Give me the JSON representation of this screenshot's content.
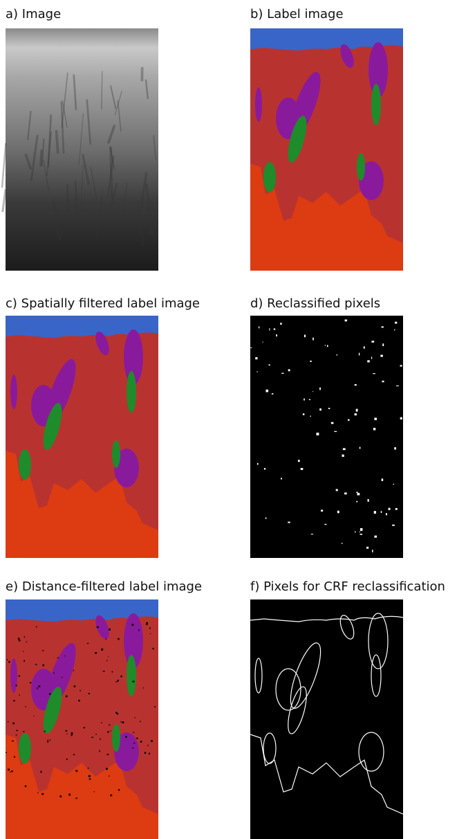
{
  "panels": [
    {
      "title": "a) Image"
    },
    {
      "title": "b) Label image"
    },
    {
      "title": "c) Spatially filtered label image"
    },
    {
      "title": "d) Reclassified pixels"
    },
    {
      "title": "e) Distance-filtered label image"
    },
    {
      "title": "f) Pixels for CRF reclassification"
    }
  ]
}
